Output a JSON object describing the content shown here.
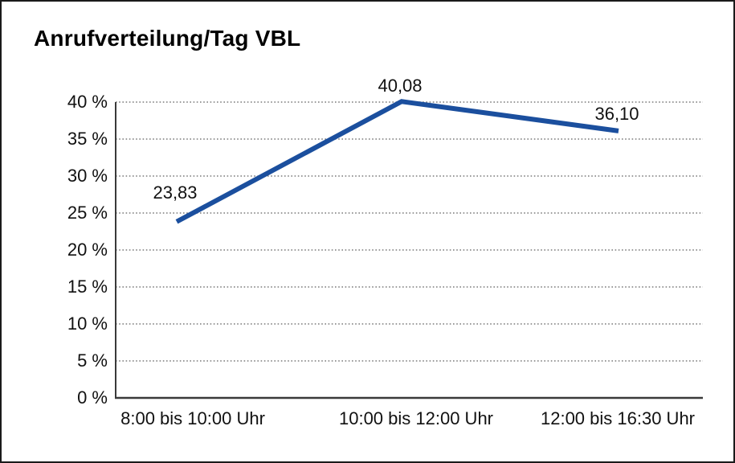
{
  "chart_data": {
    "type": "line",
    "title": "Anrufverteilung/Tag VBL",
    "categories": [
      "8:00 bis 10:00 Uhr",
      "10:00 bis 12:00 Uhr",
      "12:00 bis 16:30 Uhr"
    ],
    "values": [
      23.83,
      40.08,
      36.1
    ],
    "value_labels": [
      "23,83",
      "40,08",
      "36,10"
    ],
    "y_tick_labels": [
      "0 %",
      "5 %",
      "10 %",
      "15 %",
      "20 %",
      "25 %",
      "30 %",
      "35 %",
      "40 %"
    ],
    "y_tick_values": [
      0,
      5,
      10,
      15,
      20,
      25,
      30,
      35,
      40
    ],
    "ylim": [
      0,
      40
    ],
    "xlabel": "",
    "ylabel": "",
    "legend": "none",
    "grid": "horizontal-dotted",
    "colors": {
      "line": "#1b4f9e",
      "axis": "#3a3a3a",
      "gridline": "#7a7a7a",
      "text": "#111111",
      "background": "#ffffff",
      "frame_border": "#1a1a1a"
    }
  }
}
